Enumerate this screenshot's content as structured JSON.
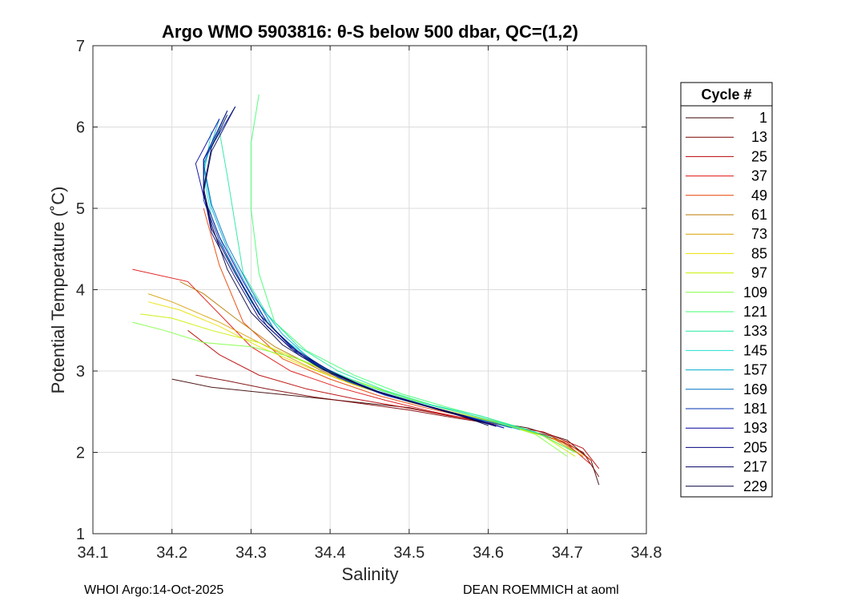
{
  "chart_data": {
    "type": "line",
    "title": "Argo WMO 5903816: θ-S below 500 dbar,  QC=(1,2)",
    "xlabel": "Salinity",
    "ylabel": "Potential Temperature (˚C)",
    "xlim": [
      34.1,
      34.8
    ],
    "ylim": [
      1,
      7
    ],
    "xticks": [
      "34.1",
      "34.2",
      "34.3",
      "34.4",
      "34.5",
      "34.6",
      "34.7",
      "34.8"
    ],
    "yticks": [
      "1",
      "2",
      "3",
      "4",
      "5",
      "6",
      "7"
    ],
    "grid": true,
    "legend": {
      "title": "Cycle #",
      "placement": "outside-right",
      "entries": [
        "1",
        "13",
        "25",
        "37",
        "49",
        "61",
        "73",
        "85",
        "97",
        "109",
        "121",
        "133",
        "145",
        "157",
        "169",
        "181",
        "193",
        "205",
        "217",
        "229"
      ],
      "colors": [
        "#3a0000",
        "#7a0000",
        "#b80000",
        "#e01010",
        "#e84000",
        "#b87800",
        "#d8a000",
        "#e8e000",
        "#c8f000",
        "#80ff40",
        "#40ff70",
        "#20e8a0",
        "#20e0d0",
        "#00b0d0",
        "#0070c0",
        "#0030b0",
        "#0000a0",
        "#000080",
        "#000060",
        "#000040"
      ]
    },
    "series": [
      {
        "name": "1",
        "color": "#3a0000",
        "x": [
          34.74,
          34.73,
          34.7,
          34.65,
          34.6,
          34.55,
          34.5,
          34.45,
          34.4,
          34.35,
          34.3,
          34.25,
          34.2
        ],
        "y": [
          1.6,
          1.9,
          2.15,
          2.3,
          2.38,
          2.45,
          2.55,
          2.6,
          2.65,
          2.7,
          2.75,
          2.8,
          2.9
        ]
      },
      {
        "name": "13",
        "color": "#7a0000",
        "x": [
          34.74,
          34.72,
          34.68,
          34.62,
          34.56,
          34.5,
          34.44,
          34.38,
          34.32,
          34.27,
          34.23
        ],
        "y": [
          1.7,
          2.0,
          2.2,
          2.33,
          2.42,
          2.52,
          2.6,
          2.68,
          2.78,
          2.88,
          2.95
        ]
      },
      {
        "name": "25",
        "color": "#b80000",
        "x": [
          34.74,
          34.72,
          34.67,
          34.61,
          34.55,
          34.49,
          34.43,
          34.37,
          34.31,
          34.26,
          34.22
        ],
        "y": [
          1.8,
          2.05,
          2.25,
          2.35,
          2.45,
          2.56,
          2.66,
          2.78,
          2.95,
          3.2,
          3.5
        ]
      },
      {
        "name": "37",
        "color": "#e01010",
        "x": [
          34.73,
          34.7,
          34.65,
          34.59,
          34.53,
          34.47,
          34.41,
          34.35,
          34.3,
          34.26,
          34.22,
          34.15
        ],
        "y": [
          1.85,
          2.1,
          2.28,
          2.38,
          2.5,
          2.64,
          2.8,
          3.0,
          3.3,
          3.7,
          4.1,
          4.25
        ]
      },
      {
        "name": "49",
        "color": "#e84000",
        "x": [
          34.73,
          34.7,
          34.64,
          34.58,
          34.52,
          34.46,
          34.4,
          34.34,
          34.29,
          34.26,
          34.24
        ],
        "y": [
          1.9,
          2.12,
          2.3,
          2.42,
          2.55,
          2.7,
          2.9,
          3.15,
          3.6,
          4.3,
          5.0
        ]
      },
      {
        "name": "61",
        "color": "#b87800",
        "x": [
          34.72,
          34.69,
          34.63,
          34.57,
          34.51,
          34.45,
          34.39,
          34.33,
          34.28,
          34.24,
          34.21
        ],
        "y": [
          1.95,
          2.15,
          2.32,
          2.45,
          2.6,
          2.78,
          3.0,
          3.3,
          3.65,
          3.95,
          4.1
        ]
      },
      {
        "name": "73",
        "color": "#d8a000",
        "x": [
          34.72,
          34.68,
          34.62,
          34.56,
          34.5,
          34.44,
          34.38,
          34.32,
          34.26,
          34.2,
          34.17
        ],
        "y": [
          1.95,
          2.18,
          2.35,
          2.48,
          2.62,
          2.8,
          3.02,
          3.3,
          3.6,
          3.85,
          3.95
        ]
      },
      {
        "name": "85",
        "color": "#e8e000",
        "x": [
          34.71,
          34.67,
          34.61,
          34.55,
          34.49,
          34.43,
          34.37,
          34.31,
          34.26,
          34.21,
          34.17
        ],
        "y": [
          2.0,
          2.2,
          2.37,
          2.5,
          2.65,
          2.83,
          3.05,
          3.3,
          3.55,
          3.75,
          3.85
        ]
      },
      {
        "name": "97",
        "color": "#c8f000",
        "x": [
          34.71,
          34.67,
          34.61,
          34.55,
          34.49,
          34.43,
          34.37,
          34.31,
          34.25,
          34.2,
          34.16
        ],
        "y": [
          1.95,
          2.2,
          2.38,
          2.52,
          2.68,
          2.88,
          3.1,
          3.35,
          3.5,
          3.65,
          3.7
        ]
      },
      {
        "name": "109",
        "color": "#80ff40",
        "x": [
          34.7,
          34.66,
          34.6,
          34.54,
          34.48,
          34.42,
          34.36,
          34.3,
          34.24,
          34.19,
          34.15
        ],
        "y": [
          1.95,
          2.22,
          2.4,
          2.55,
          2.72,
          2.92,
          3.15,
          3.3,
          3.35,
          3.5,
          3.6
        ]
      },
      {
        "name": "121",
        "color": "#40ff70",
        "x": [
          34.71,
          34.66,
          34.6,
          34.55,
          34.49,
          34.43,
          34.37,
          34.33,
          34.31,
          34.3,
          34.3,
          34.31
        ],
        "y": [
          2.0,
          2.25,
          2.42,
          2.55,
          2.72,
          2.95,
          3.25,
          3.6,
          4.2,
          5.0,
          5.8,
          6.4
        ]
      },
      {
        "name": "133",
        "color": "#20e8a0",
        "x": [
          34.68,
          34.64,
          34.59,
          34.53,
          34.47,
          34.41,
          34.36,
          34.32,
          34.29,
          34.28,
          34.27,
          34.26
        ],
        "y": [
          2.18,
          2.3,
          2.45,
          2.58,
          2.76,
          3.0,
          3.3,
          3.7,
          4.2,
          4.8,
          5.4,
          5.95
        ]
      },
      {
        "name": "145",
        "color": "#20e0d0",
        "x": [
          34.66,
          34.62,
          34.57,
          34.51,
          34.45,
          34.39,
          34.34,
          34.3,
          34.27,
          34.25,
          34.24,
          34.25
        ],
        "y": [
          2.25,
          2.35,
          2.48,
          2.62,
          2.8,
          3.05,
          3.4,
          3.85,
          4.4,
          4.9,
          5.4,
          5.95
        ]
      },
      {
        "name": "157",
        "color": "#00b0d0",
        "x": [
          34.64,
          34.6,
          34.55,
          34.49,
          34.43,
          34.38,
          34.34,
          34.3,
          34.27,
          34.25,
          34.24,
          34.26
        ],
        "y": [
          2.28,
          2.38,
          2.5,
          2.65,
          2.85,
          3.1,
          3.45,
          3.95,
          4.5,
          5.0,
          5.5,
          6.1
        ]
      },
      {
        "name": "169",
        "color": "#0070c0",
        "x": [
          34.63,
          34.59,
          34.54,
          34.48,
          34.42,
          34.37,
          34.33,
          34.3,
          34.27,
          34.25,
          34.24,
          34.27
        ],
        "y": [
          2.3,
          2.4,
          2.52,
          2.68,
          2.88,
          3.15,
          3.5,
          4.0,
          4.55,
          5.05,
          5.55,
          6.2
        ]
      },
      {
        "name": "181",
        "color": "#0030b0",
        "x": [
          34.62,
          34.58,
          34.53,
          34.47,
          34.41,
          34.36,
          34.32,
          34.29,
          34.26,
          34.24,
          34.24,
          34.28
        ],
        "y": [
          2.3,
          2.42,
          2.55,
          2.7,
          2.92,
          3.2,
          3.55,
          4.05,
          4.6,
          5.1,
          5.6,
          6.25
        ]
      },
      {
        "name": "193",
        "color": "#0000a0",
        "x": [
          34.62,
          34.57,
          34.52,
          34.46,
          34.41,
          34.36,
          34.32,
          34.29,
          34.26,
          34.24,
          34.23,
          34.26
        ],
        "y": [
          2.3,
          2.44,
          2.57,
          2.74,
          2.95,
          3.22,
          3.6,
          4.1,
          4.65,
          5.15,
          5.55,
          6.1
        ]
      },
      {
        "name": "205",
        "color": "#000080",
        "x": [
          34.61,
          34.57,
          34.52,
          34.46,
          34.4,
          34.35,
          34.31,
          34.28,
          34.25,
          34.24,
          34.24,
          34.27
        ],
        "y": [
          2.32,
          2.45,
          2.58,
          2.75,
          2.98,
          3.28,
          3.65,
          4.15,
          4.7,
          5.2,
          5.6,
          6.2
        ]
      },
      {
        "name": "217",
        "color": "#000060",
        "x": [
          34.61,
          34.56,
          34.51,
          34.45,
          34.4,
          34.35,
          34.31,
          34.28,
          34.25,
          34.24,
          34.25,
          34.28
        ],
        "y": [
          2.32,
          2.46,
          2.6,
          2.78,
          3.0,
          3.3,
          3.7,
          4.2,
          4.75,
          5.2,
          5.7,
          6.25
        ]
      },
      {
        "name": "229",
        "color": "#000040",
        "x": [
          34.6,
          34.56,
          34.51,
          34.45,
          34.39,
          34.34,
          34.3,
          34.27,
          34.25,
          34.24,
          34.25,
          34.27
        ],
        "y": [
          2.33,
          2.47,
          2.6,
          2.78,
          3.02,
          3.32,
          3.72,
          4.25,
          4.8,
          5.25,
          5.75,
          6.15
        ]
      }
    ]
  },
  "footer": {
    "left": "WHOI Argo:14-Oct-2025",
    "right": "DEAN ROEMMICH at aoml"
  }
}
